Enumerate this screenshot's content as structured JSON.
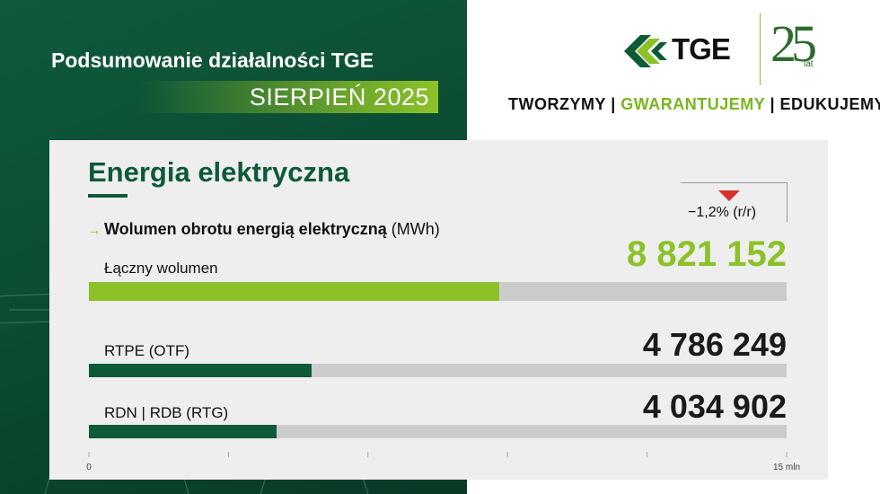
{
  "header": {
    "title": "Podsumowanie działalności TGE",
    "month": "SIERPIEŃ 2025"
  },
  "brand": {
    "logo_text": "TGE",
    "anniversary_number": "25",
    "anniversary_label": "lat",
    "slogan": [
      "TWORZYMY",
      "GWARANTUJEMY",
      "EDUKUJEMY"
    ],
    "slogan_separator": "|",
    "colors": {
      "dark_green": "#0c5a38",
      "light_green": "#8cc228",
      "red": "#d9312b"
    }
  },
  "card": {
    "title": "Energia elektryczna",
    "subtitle_arrow": "→",
    "subtitle_bold": "Wolumen obrotu energią elektryczną",
    "subtitle_unit": "(MWh)",
    "yoy_change": "−1,2% (r/r)"
  },
  "chart_data": {
    "type": "bar",
    "orientation": "horizontal",
    "categories": [
      "Łączny wolumen",
      "RTPE (OTF)",
      "RDN | RDB (RTG)"
    ],
    "values": [
      8821152,
      4786249,
      4034902
    ],
    "value_labels": [
      "8 821 152",
      "4 786 249",
      "4 034 902"
    ],
    "bar_colors": [
      "#8cc228",
      "#0c5a38",
      "#0c5a38"
    ],
    "xlim": [
      0,
      15000000
    ],
    "tick_labels": {
      "min": "0",
      "max": "15 mln"
    },
    "grid": false
  }
}
